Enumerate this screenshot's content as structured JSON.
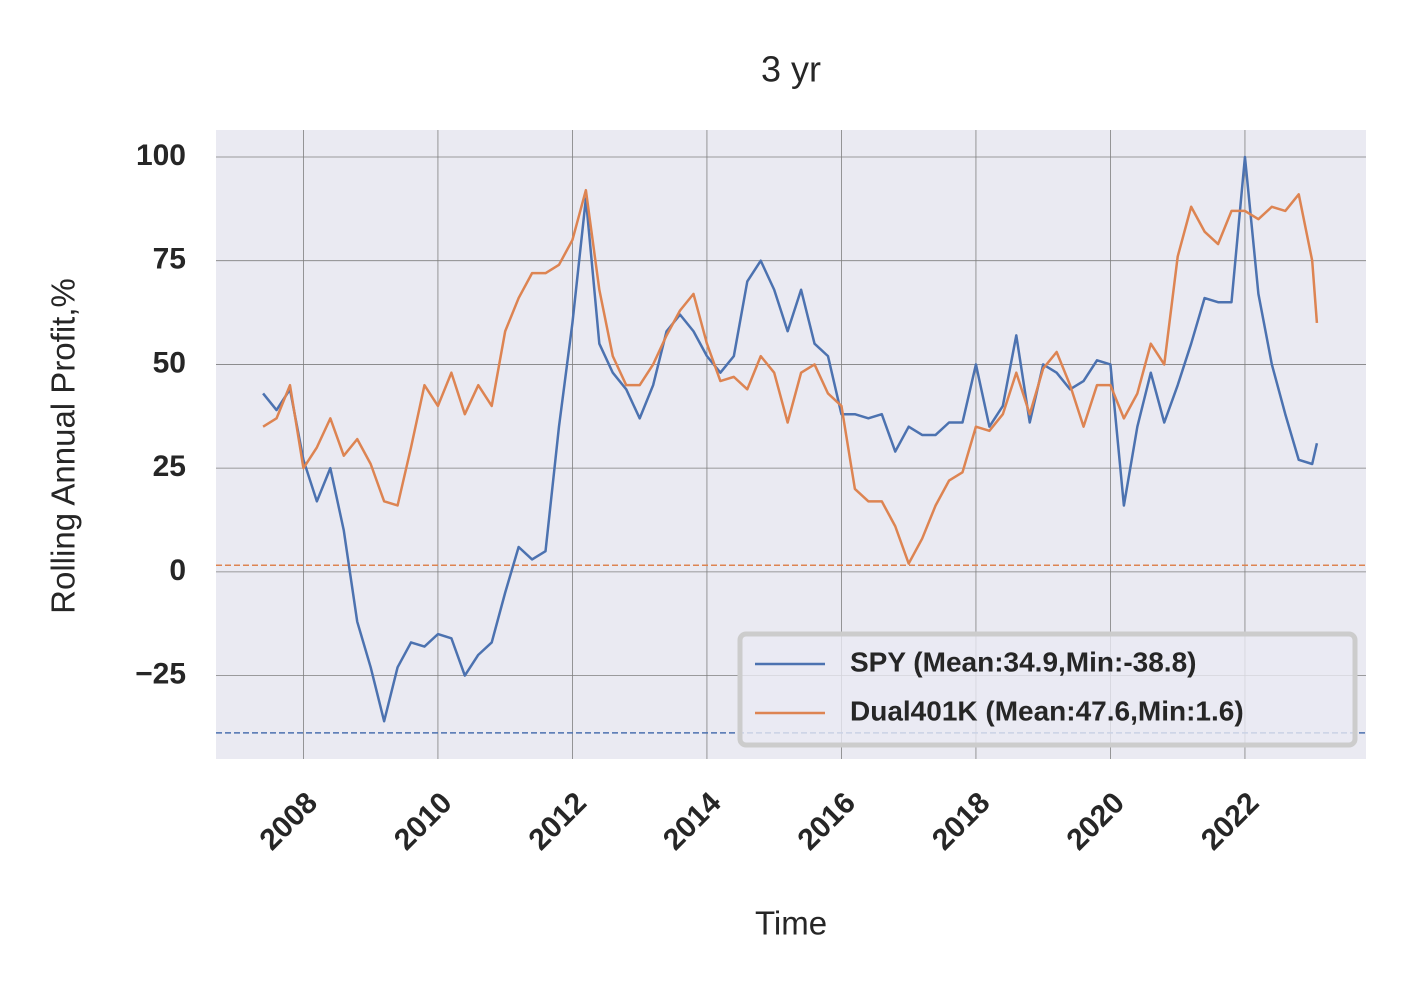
{
  "chart_data": {
    "type": "line",
    "title": "3 yr",
    "x_label": "Time",
    "y_label": "Rolling Annual Profit,%",
    "x": [
      2007.4,
      2007.6,
      2007.8,
      2008,
      2008.2,
      2008.4,
      2008.6,
      2008.8,
      2009,
      2009.2,
      2009.4,
      2009.6,
      2009.8,
      2010,
      2010.2,
      2010.4,
      2010.6,
      2010.8,
      2011,
      2011.2,
      2011.4,
      2011.6,
      2011.8,
      2012,
      2012.2,
      2012.4,
      2012.6,
      2012.8,
      2013,
      2013.2,
      2013.4,
      2013.6,
      2013.8,
      2014,
      2014.2,
      2014.4,
      2014.6,
      2014.8,
      2015,
      2015.2,
      2015.4,
      2015.6,
      2015.8,
      2016,
      2016.2,
      2016.4,
      2016.6,
      2016.8,
      2017,
      2017.2,
      2017.4,
      2017.6,
      2017.8,
      2018,
      2018.2,
      2018.4,
      2018.6,
      2018.8,
      2019,
      2019.2,
      2019.4,
      2019.6,
      2019.8,
      2020,
      2020.2,
      2020.4,
      2020.6,
      2020.8,
      2021,
      2021.2,
      2021.4,
      2021.6,
      2021.8,
      2022,
      2022.2,
      2022.4,
      2022.6,
      2022.8,
      2023,
      2023.07
    ],
    "series": [
      {
        "name": "SPY (Mean:34.9,Min:-38.8)",
        "color": "#4c72b0",
        "values": [
          43,
          39,
          44,
          27,
          17,
          25,
          10,
          -12,
          -23,
          -36,
          -23,
          -17,
          -18,
          -15,
          -16,
          -25,
          -20,
          -17,
          -5,
          6,
          3,
          5,
          35,
          60,
          90,
          55,
          48,
          44,
          37,
          45,
          58,
          62,
          58,
          52,
          48,
          52,
          70,
          75,
          68,
          58,
          68,
          55,
          52,
          38,
          38,
          37,
          38,
          29,
          35,
          33,
          33,
          36,
          36,
          50,
          35,
          40,
          57,
          36,
          50,
          48,
          44,
          46,
          51,
          50,
          16,
          35,
          48,
          36,
          45,
          55,
          66,
          65,
          65,
          100,
          67,
          50,
          38,
          27,
          26,
          31
        ]
      },
      {
        "name": "Dual401K (Mean:47.6,Min:1.6)",
        "color": "#dd8452",
        "values": [
          35,
          37,
          45,
          25,
          30,
          37,
          28,
          32,
          26,
          17,
          16,
          30,
          45,
          40,
          48,
          38,
          45,
          40,
          58,
          66,
          72,
          72,
          74,
          80,
          92,
          68,
          52,
          45,
          45,
          50,
          57,
          63,
          67,
          55,
          46,
          47,
          44,
          52,
          48,
          36,
          48,
          50,
          43,
          40,
          20,
          17,
          17,
          11,
          2,
          8,
          16,
          22,
          24,
          35,
          34,
          38,
          48,
          38,
          49,
          53,
          45,
          35,
          45,
          45,
          37,
          43,
          55,
          50,
          76,
          88,
          82,
          79,
          87,
          87,
          85,
          88,
          87,
          91,
          75,
          60
        ]
      }
    ],
    "hlines": [
      {
        "value": -38.8,
        "color": "#4c72b0"
      },
      {
        "value": 1.6,
        "color": "#dd8452"
      }
    ],
    "xlim": [
      2006.7,
      2023.8
    ],
    "xticks": [
      2008,
      2010,
      2012,
      2014,
      2016,
      2018,
      2020,
      2022
    ],
    "ylim": [
      -45.1,
      106.5
    ],
    "yticks": [
      {
        "value": -25,
        "label": "−25"
      },
      0,
      25,
      50,
      75,
      100
    ],
    "grid": true,
    "legend": "lower right"
  }
}
